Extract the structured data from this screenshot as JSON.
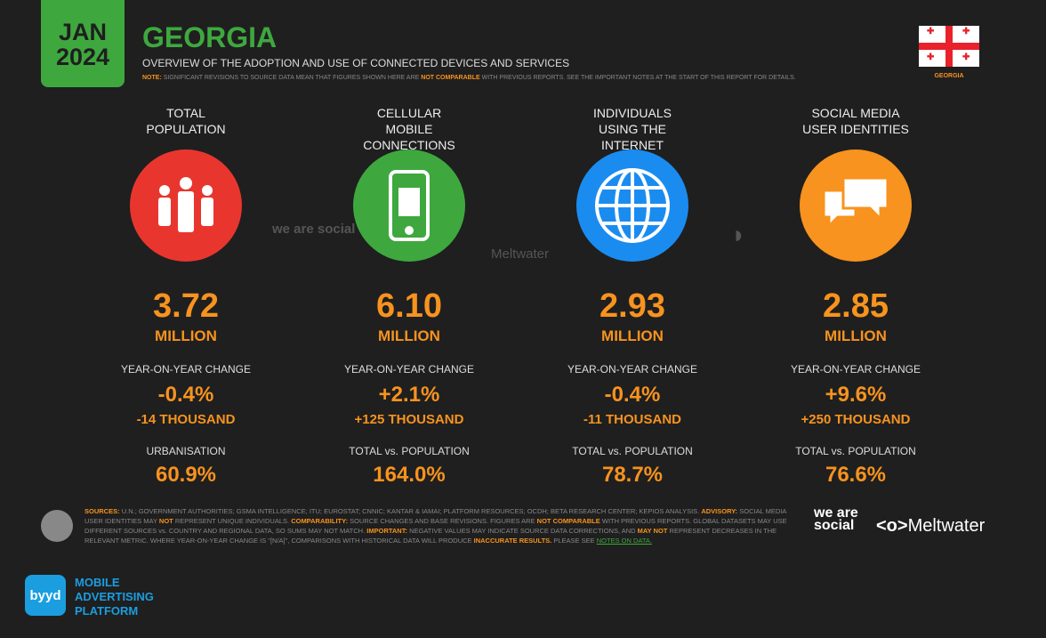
{
  "header": {
    "month": "JAN",
    "year": "2024",
    "title": "GEORGIA",
    "subtitle": "OVERVIEW OF THE ADOPTION AND USE OF CONNECTED DEVICES AND SERVICES",
    "note_label": "NOTE:",
    "note_a": "SIGNIFICANT REVISIONS TO SOURCE DATA MEAN THAT FIGURES SHOWN HERE ARE",
    "note_hl": "NOT COMPARABLE",
    "note_b": "WITH PREVIOUS REPORTS. SEE THE IMPORTANT NOTES AT THE START OF THIS REPORT FOR DETAILS.",
    "flag_label": "GEORGIA"
  },
  "colors": {
    "accent": "#f7931e",
    "green": "#3ea83e",
    "red": "#e8362f",
    "blue": "#1a8cf0",
    "orange": "#f7931e"
  },
  "stats": [
    {
      "label": "TOTAL POPULATION",
      "icon": "people-icon",
      "value": "3.72",
      "unit": "MILLION",
      "yoy_label": "YEAR-ON-YEAR CHANGE",
      "yoy_pct": "-0.4%",
      "yoy_abs": "-14 THOUSAND",
      "sec_label": "URBANISATION",
      "sec_value": "60.9%"
    },
    {
      "label": "CELLULAR MOBILE CONNECTIONS",
      "icon": "mobile-phone-icon",
      "value": "6.10",
      "unit": "MILLION",
      "yoy_label": "YEAR-ON-YEAR CHANGE",
      "yoy_pct": "+2.1%",
      "yoy_abs": "+125 THOUSAND",
      "sec_label": "TOTAL vs. POPULATION",
      "sec_value": "164.0%"
    },
    {
      "label": "INDIVIDUALS USING THE INTERNET",
      "icon": "globe-icon",
      "value": "2.93",
      "unit": "MILLION",
      "yoy_label": "YEAR-ON-YEAR CHANGE",
      "yoy_pct": "-0.4%",
      "yoy_abs": "-11 THOUSAND",
      "sec_label": "TOTAL vs. POPULATION",
      "sec_value": "78.7%"
    },
    {
      "label": "SOCIAL MEDIA USER IDENTITIES",
      "icon": "speech-bubbles-icon",
      "value": "2.85",
      "unit": "MILLION",
      "yoy_label": "YEAR-ON-YEAR CHANGE",
      "yoy_pct": "+9.6%",
      "yoy_abs": "+250 THOUSAND",
      "sec_label": "TOTAL vs. POPULATION",
      "sec_value": "76.6%"
    }
  ],
  "watermarks": {
    "wearesocial": "we are social",
    "meltwater": "Meltwater"
  },
  "footer": {
    "sources_label": "SOURCES:",
    "sources": "U.N.; GOVERNMENT AUTHORITIES; GSMA INTELLIGENCE; ITU; EUROSTAT; CNNIC; KANTAR & IAMAI; PLATFORM RESOURCES; OCDH; BETA RESEARCH CENTER; KEPIOS ANALYSIS.",
    "advisory_label": "ADVISORY:",
    "advisory_a": "SOCIAL MEDIA USER IDENTITIES MAY",
    "advisory_hl": "NOT",
    "advisory_b": "REPRESENT UNIQUE INDIVIDUALS.",
    "comp_label": "COMPARABILITY:",
    "comp_a": "SOURCE CHANGES AND BASE REVISIONS. FIGURES ARE",
    "comp_hl": "NOT COMPARABLE",
    "comp_b": "WITH PREVIOUS REPORTS. GLOBAL DATASETS MAY USE DIFFERENT SOURCES vs. COUNTRY AND REGIONAL DATA, SO SUMS MAY NOT MATCH.",
    "imp_label": "IMPORTANT:",
    "imp_a": "NEGATIVE VALUES MAY INDICATE SOURCE DATA CORRECTIONS, AND",
    "imp_hl": "MAY NOT",
    "imp_b": "REPRESENT DECREASES IN THE RELEVANT METRIC. WHERE YEAR-ON-YEAR CHANGE IS \"[N/A]\", COMPARISONS WITH HISTORICAL DATA WILL PRODUCE",
    "imp_hl2": "INACCURATE RESULTS.",
    "imp_c": "PLEASE SEE",
    "link": "NOTES ON DATA."
  },
  "brand": {
    "wearesocial": "we are social",
    "meltwater": "Meltwater",
    "byyd_logo": "byyd",
    "byyd_text_1": "MOBILE",
    "byyd_text_2": "ADVERTISING",
    "byyd_text_3": "PLATFORM"
  }
}
